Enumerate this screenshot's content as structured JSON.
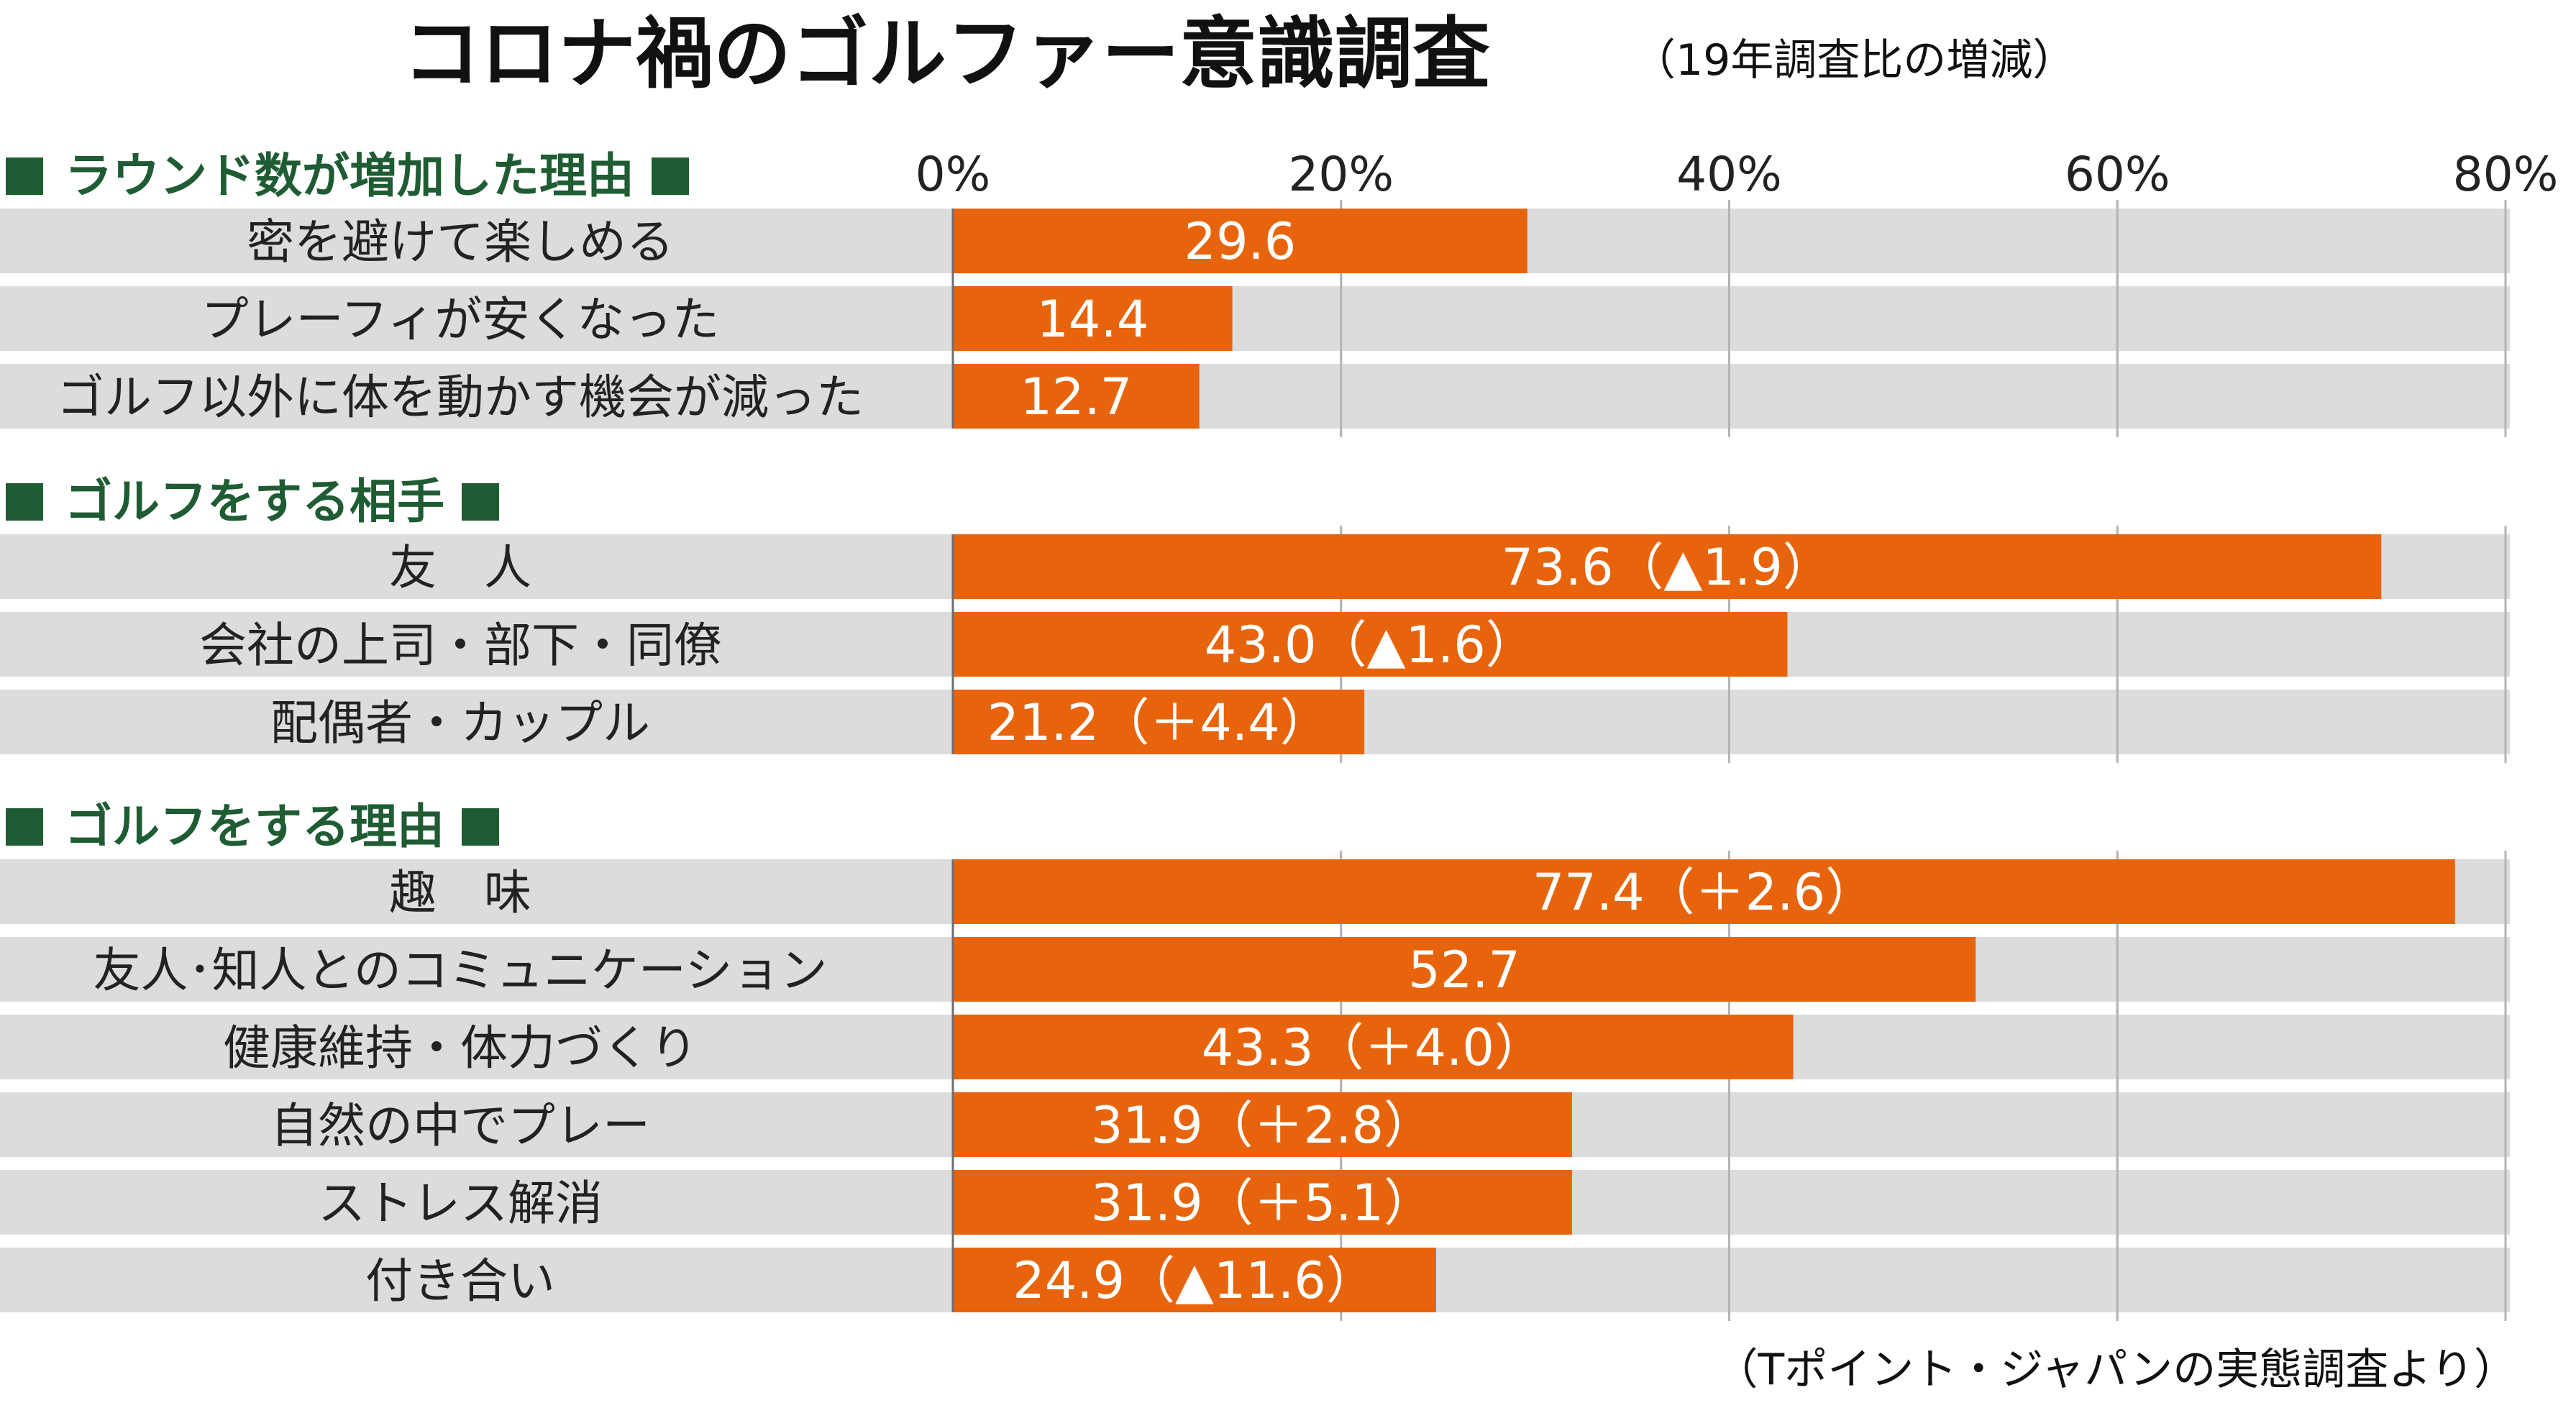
{
  "title": "コロナ禍のゴルファー意識調査",
  "subtitle": "（19年調査比の増減）",
  "source": "（Tポイント・ジャパンの実態調査より）",
  "colors": {
    "bar": "#e8640c",
    "row_background": "#dcdcdc",
    "section_marker": "#1f5c33",
    "gridline": "#b4b4b4",
    "axis": "#6e6e6e",
    "value_text": "#ffffff"
  },
  "chart_data": {
    "type": "bar",
    "orientation": "horizontal",
    "xlim": [
      0,
      80
    ],
    "ticks": [
      {
        "value": 0,
        "label": "0%"
      },
      {
        "value": 20,
        "label": "20%"
      },
      {
        "value": 40,
        "label": "40%"
      },
      {
        "value": 60,
        "label": "60%"
      },
      {
        "value": 80,
        "label": "80%"
      }
    ],
    "grid": true,
    "sections": [
      {
        "title": "ラウンド数が増加した理由",
        "rows": [
          {
            "label": "密を避けて楽しめる",
            "value": 29.6,
            "value_label": "29.6"
          },
          {
            "label": "プレーフィが安くなった",
            "value": 14.4,
            "value_label": "14.4"
          },
          {
            "label": "ゴルフ以外に体を動かす機会が減った",
            "value": 12.7,
            "value_label": "12.7"
          }
        ]
      },
      {
        "title": "ゴルフをする相手",
        "rows": [
          {
            "label": "友　人",
            "value": 73.6,
            "value_label": "73.6（▲1.9）"
          },
          {
            "label": "会社の上司・部下・同僚",
            "value": 43.0,
            "value_label": "43.0（▲1.6）"
          },
          {
            "label": "配偶者・カップル",
            "value": 21.2,
            "value_label": "21.2（＋4.4）"
          }
        ]
      },
      {
        "title": "ゴルフをする理由",
        "rows": [
          {
            "label": "趣　味",
            "value": 77.4,
            "value_label": "77.4（＋2.6）"
          },
          {
            "label": "友人･知人とのコミュニケーション",
            "value": 52.7,
            "value_label": "52.7"
          },
          {
            "label": "健康維持・体力づくり",
            "value": 43.3,
            "value_label": "43.3（＋4.0）"
          },
          {
            "label": "自然の中でプレー",
            "value": 31.9,
            "value_label": "31.9（＋2.8）"
          },
          {
            "label": "ストレス解消",
            "value": 31.9,
            "value_label": "31.9（＋5.1）"
          },
          {
            "label": "付き合い",
            "value": 24.9,
            "value_label": "24.9（▲11.6）"
          }
        ]
      }
    ]
  }
}
